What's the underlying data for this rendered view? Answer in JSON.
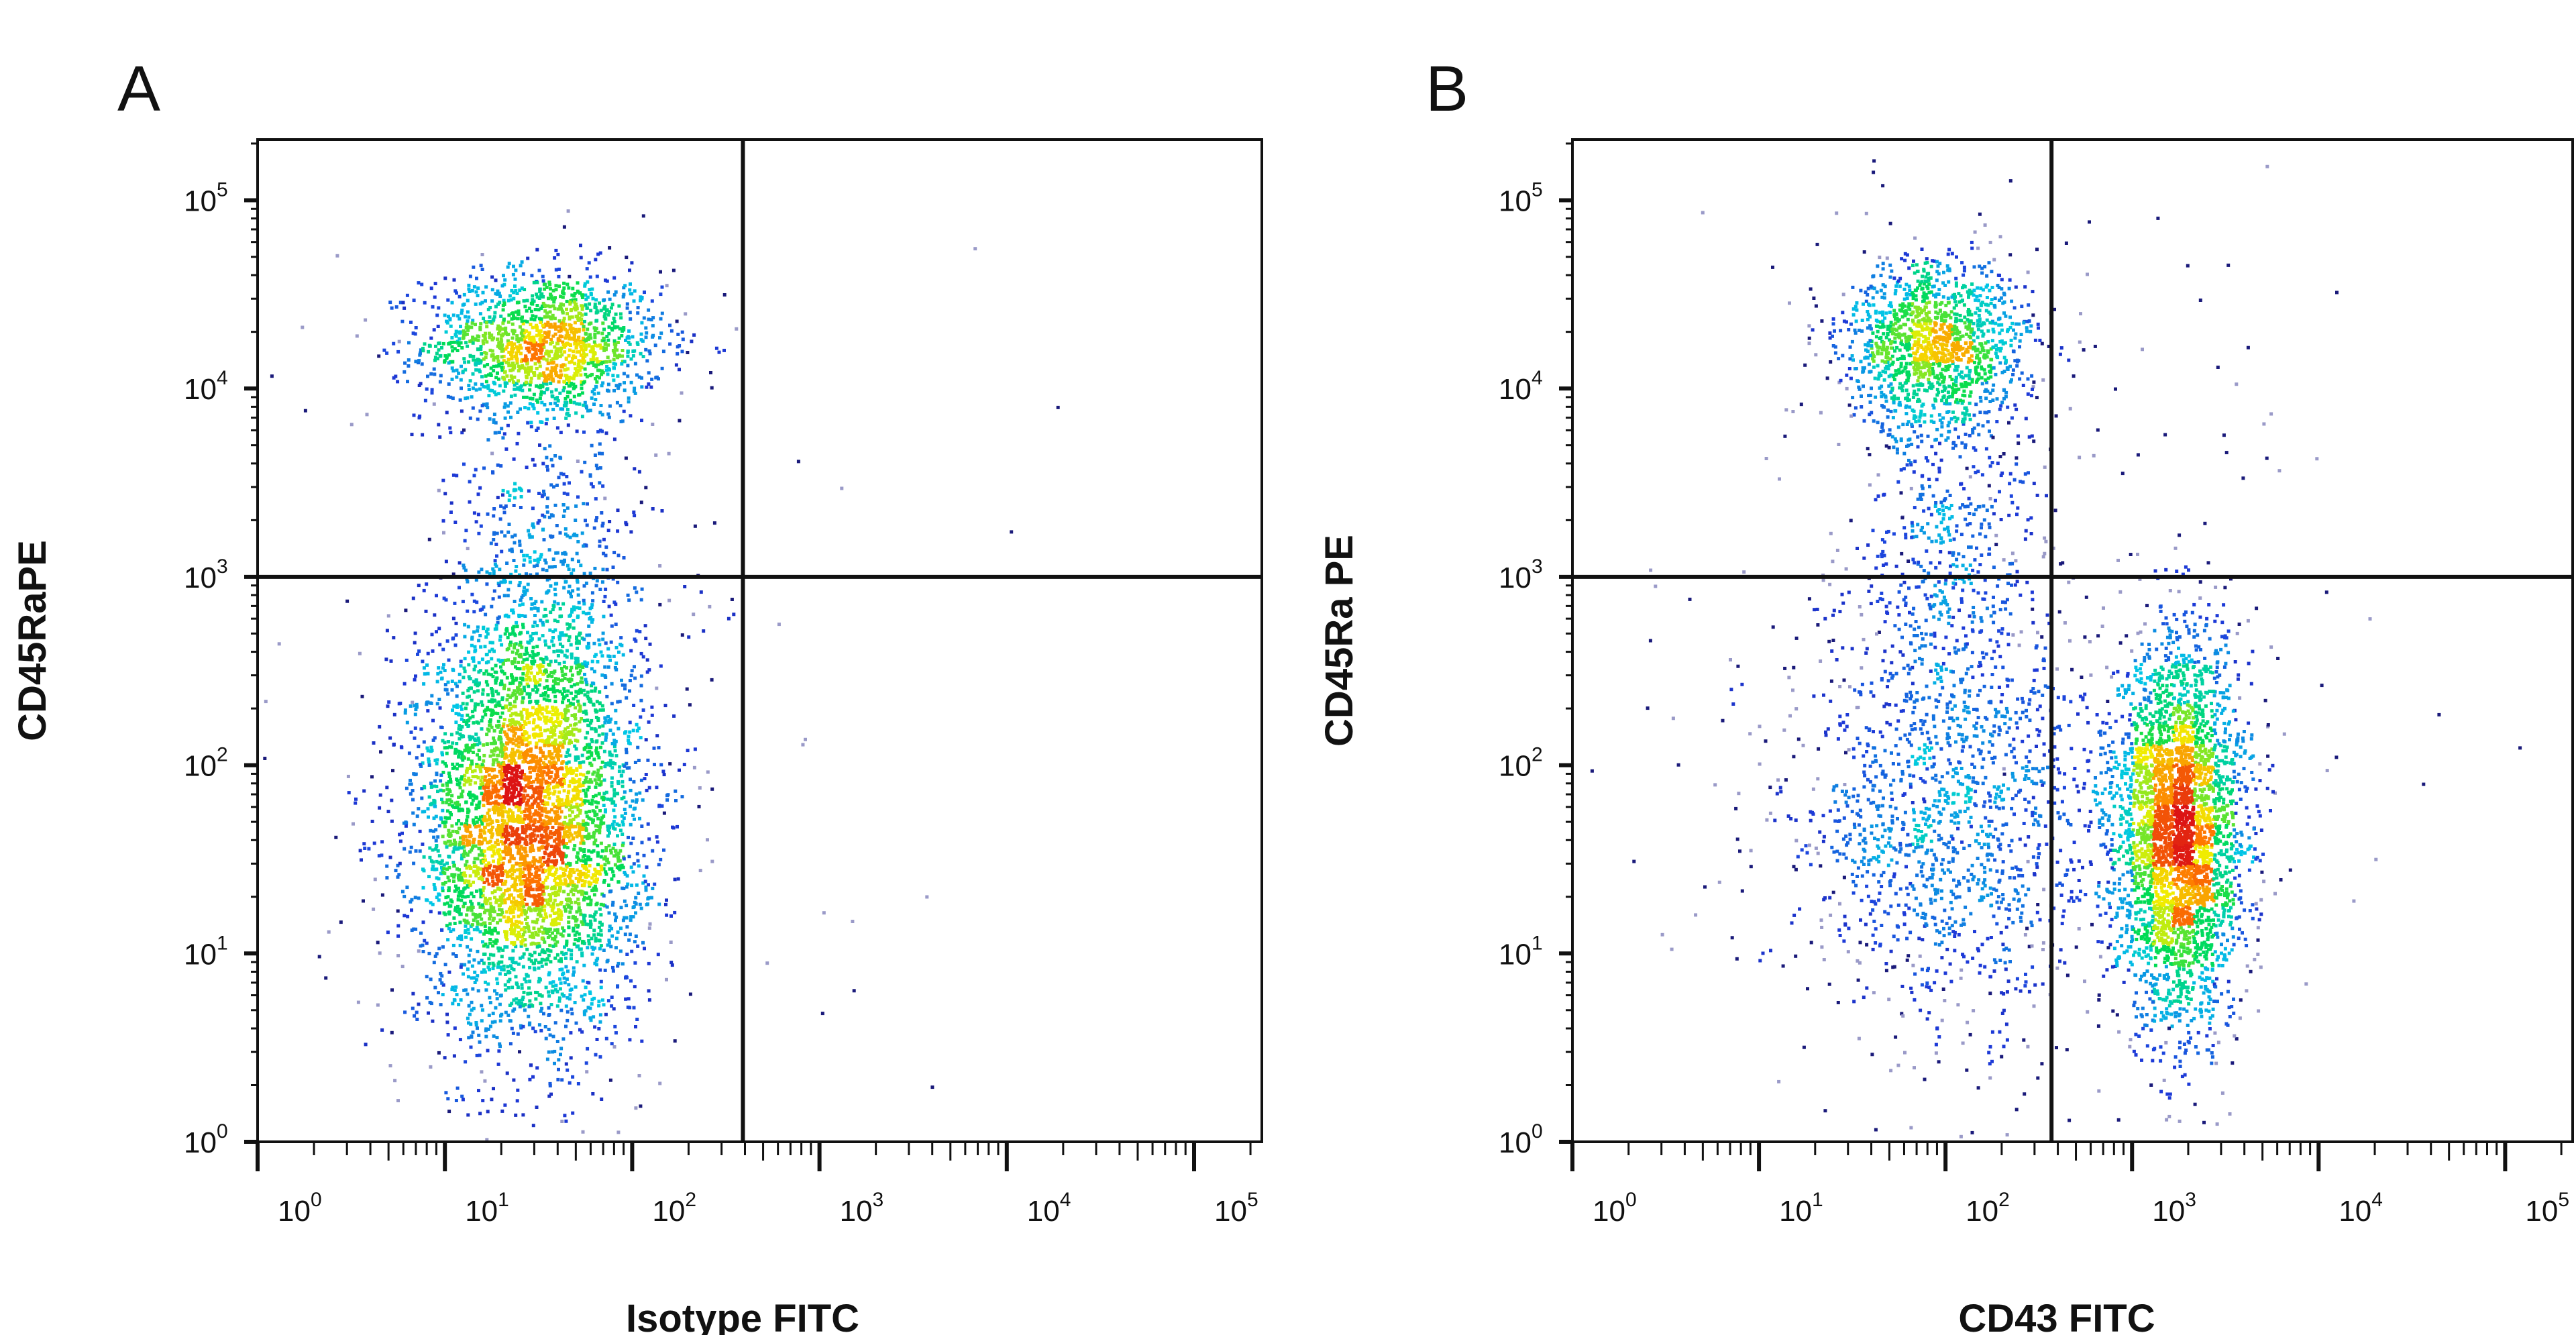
{
  "chart_data": [
    {
      "type": "scatter",
      "panel_label": "A",
      "xlabel": "Isotype FITC",
      "ylabel": "CD45RaPE",
      "x_scale": "log",
      "y_scale": "log",
      "xlim": [
        1,
        230000
      ],
      "ylim": [
        1,
        210000
      ],
      "x_ticks": [
        1,
        10,
        100,
        1000,
        10000,
        100000
      ],
      "y_ticks": [
        1,
        10,
        100,
        1000,
        10000,
        100000
      ],
      "tick_labels": [
        "0",
        "1",
        "2",
        "3",
        "4",
        "5"
      ],
      "tick_base": "10",
      "quadrant_gate": {
        "x": 390,
        "y": 1000
      },
      "grid": false,
      "colormap": "density (blue-cyan-green-yellow-red)",
      "populations": [
        {
          "center": [
            34,
            17000
          ],
          "spread_decades": [
            0.32,
            0.2
          ],
          "relative_weight": 0.22
        },
        {
          "center": [
            28,
            48
          ],
          "spread_decades": [
            0.3,
            0.55
          ],
          "relative_weight": 0.68
        },
        {
          "center": [
            35,
            900
          ],
          "spread_decades": [
            0.25,
            0.45
          ],
          "relative_weight": 0.08
        },
        {
          "center": [
            30,
            300
          ],
          "spread_decades": [
            0.9,
            1.3
          ],
          "relative_weight": 0.02
        }
      ]
    },
    {
      "type": "scatter",
      "panel_label": "B",
      "xlabel": "CD43 FITC",
      "ylabel": "CD45Ra PE",
      "x_scale": "log",
      "y_scale": "log",
      "xlim": [
        1,
        230000
      ],
      "ylim": [
        1,
        210000
      ],
      "x_ticks": [
        1,
        10,
        100,
        1000,
        10000,
        100000
      ],
      "y_ticks": [
        1,
        10,
        100,
        1000,
        10000,
        100000
      ],
      "tick_labels": [
        "0",
        "1",
        "2",
        "3",
        "4",
        "5"
      ],
      "tick_base": "10",
      "quadrant_gate": {
        "x": 370,
        "y": 1000
      },
      "grid": false,
      "colormap": "density (blue-cyan-green-yellow-red)",
      "populations": [
        {
          "center": [
            90,
            17000
          ],
          "spread_decades": [
            0.25,
            0.22
          ],
          "relative_weight": 0.2
        },
        {
          "center": [
            1800,
            45
          ],
          "spread_decades": [
            0.17,
            0.5
          ],
          "relative_weight": 0.5
        },
        {
          "center": [
            100,
            50
          ],
          "spread_decades": [
            0.45,
            0.6
          ],
          "relative_weight": 0.2
        },
        {
          "center": [
            110,
            1500
          ],
          "spread_decades": [
            0.25,
            0.5
          ],
          "relative_weight": 0.07
        },
        {
          "center": [
            300,
            300
          ],
          "spread_decades": [
            1.0,
            1.3
          ],
          "relative_weight": 0.03
        }
      ]
    }
  ]
}
